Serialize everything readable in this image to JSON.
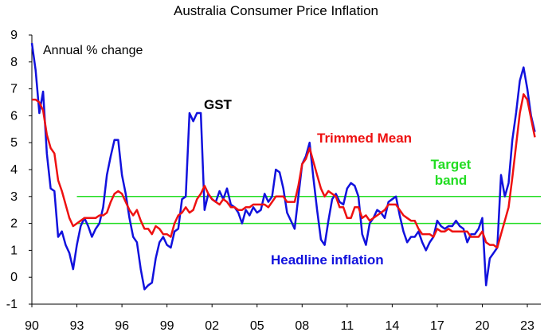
{
  "chart_data": {
    "type": "line",
    "title": "Australia Consumer Price Inflation",
    "ylabel": "Annual % change",
    "xlabel": "",
    "ylim": [
      -1,
      9
    ],
    "xlim": [
      1990,
      2023.9
    ],
    "y_ticks": [
      "-1",
      "0",
      "1",
      "2",
      "3",
      "4",
      "5",
      "6",
      "7",
      "8",
      "9"
    ],
    "x_ticks": [
      {
        "label": "90",
        "x": 1990
      },
      {
        "label": "93",
        "x": 1993
      },
      {
        "label": "96",
        "x": 1996
      },
      {
        "label": "99",
        "x": 1999
      },
      {
        "label": "02",
        "x": 2002
      },
      {
        "label": "05",
        "x": 2005
      },
      {
        "label": "08",
        "x": 2008
      },
      {
        "label": "11",
        "x": 2011
      },
      {
        "label": "14",
        "x": 2014
      },
      {
        "label": "17",
        "x": 2017
      },
      {
        "label": "20",
        "x": 2020
      },
      {
        "label": "23",
        "x": 2023
      }
    ],
    "target_band": {
      "lower": 2,
      "upper": 3,
      "x_start": 1993,
      "label_line1": "Target",
      "label_line2": "band",
      "color": "#22dd22"
    },
    "annotations": [
      {
        "text": "GST",
        "color": "#000000"
      },
      {
        "text": "Trimmed Mean",
        "color": "#ee1111"
      },
      {
        "text": "Headline inflation",
        "color": "#1111dd"
      }
    ],
    "series": [
      {
        "name": "Headline inflation",
        "color": "#1111dd",
        "x": [
          1990.0,
          1990.25,
          1990.5,
          1990.75,
          1991.0,
          1991.25,
          1991.5,
          1991.75,
          1992.0,
          1992.25,
          1992.5,
          1992.75,
          1993.0,
          1993.25,
          1993.5,
          1993.75,
          1994.0,
          1994.25,
          1994.5,
          1994.75,
          1995.0,
          1995.25,
          1995.5,
          1995.75,
          1996.0,
          1996.25,
          1996.5,
          1996.75,
          1997.0,
          1997.25,
          1997.5,
          1997.75,
          1998.0,
          1998.25,
          1998.5,
          1998.75,
          1999.0,
          1999.25,
          1999.5,
          1999.75,
          2000.0,
          2000.25,
          2000.5,
          2000.75,
          2001.0,
          2001.25,
          2001.5,
          2001.75,
          2002.0,
          2002.25,
          2002.5,
          2002.75,
          2003.0,
          2003.25,
          2003.5,
          2003.75,
          2004.0,
          2004.25,
          2004.5,
          2004.75,
          2005.0,
          2005.25,
          2005.5,
          2005.75,
          2006.0,
          2006.25,
          2006.5,
          2006.75,
          2007.0,
          2007.25,
          2007.5,
          2007.75,
          2008.0,
          2008.25,
          2008.5,
          2008.75,
          2009.0,
          2009.25,
          2009.5,
          2009.75,
          2010.0,
          2010.25,
          2010.5,
          2010.75,
          2011.0,
          2011.25,
          2011.5,
          2011.75,
          2012.0,
          2012.25,
          2012.5,
          2012.75,
          2013.0,
          2013.25,
          2013.5,
          2013.75,
          2014.0,
          2014.25,
          2014.5,
          2014.75,
          2015.0,
          2015.25,
          2015.5,
          2015.75,
          2016.0,
          2016.25,
          2016.5,
          2016.75,
          2017.0,
          2017.25,
          2017.5,
          2017.75,
          2018.0,
          2018.25,
          2018.5,
          2018.75,
          2019.0,
          2019.25,
          2019.5,
          2019.75,
          2020.0,
          2020.25,
          2020.5,
          2020.75,
          2021.0,
          2021.25,
          2021.5,
          2021.75,
          2022.0,
          2022.25,
          2022.5,
          2022.75,
          2023.0,
          2023.25,
          2023.5
        ],
        "y": [
          8.7,
          7.7,
          6.1,
          6.9,
          4.6,
          3.3,
          3.2,
          1.5,
          1.7,
          1.2,
          0.9,
          0.3,
          1.2,
          1.9,
          2.2,
          1.9,
          1.5,
          1.8,
          2.0,
          2.6,
          3.8,
          4.5,
          5.1,
          5.1,
          3.8,
          3.1,
          2.2,
          1.5,
          1.3,
          0.3,
          -0.45,
          -0.3,
          -0.2,
          0.7,
          1.3,
          1.5,
          1.2,
          1.1,
          1.7,
          1.8,
          2.9,
          3.0,
          6.1,
          5.8,
          6.1,
          6.1,
          2.5,
          3.1,
          2.9,
          2.8,
          3.2,
          2.9,
          3.3,
          2.7,
          2.6,
          2.4,
          2.0,
          2.5,
          2.3,
          2.6,
          2.4,
          2.5,
          3.1,
          2.8,
          3.0,
          4.0,
          3.9,
          3.3,
          2.4,
          2.1,
          1.8,
          3.0,
          4.2,
          4.5,
          5.0,
          3.7,
          2.5,
          1.4,
          1.2,
          2.1,
          2.9,
          3.1,
          2.8,
          2.7,
          3.3,
          3.5,
          3.4,
          3.0,
          1.6,
          1.2,
          2.0,
          2.2,
          2.5,
          2.4,
          2.2,
          2.8,
          2.9,
          3.0,
          2.3,
          1.7,
          1.3,
          1.5,
          1.5,
          1.7,
          1.3,
          1.0,
          1.3,
          1.5,
          2.1,
          1.9,
          1.8,
          1.9,
          1.9,
          2.1,
          1.9,
          1.8,
          1.3,
          1.6,
          1.6,
          1.8,
          2.2,
          -0.3,
          0.7,
          0.9,
          1.1,
          3.8,
          3.0,
          3.5,
          5.1,
          6.1,
          7.3,
          7.8,
          7.0,
          6.0,
          5.4
        ]
      },
      {
        "name": "Trimmed Mean",
        "color": "#ee1111",
        "x": [
          1990.0,
          1990.25,
          1990.5,
          1990.75,
          1991.0,
          1991.25,
          1991.5,
          1991.75,
          1992.0,
          1992.25,
          1992.5,
          1992.75,
          1993.0,
          1993.25,
          1993.5,
          1993.75,
          1994.0,
          1994.25,
          1994.5,
          1994.75,
          1995.0,
          1995.25,
          1995.5,
          1995.75,
          1996.0,
          1996.25,
          1996.5,
          1996.75,
          1997.0,
          1997.25,
          1997.5,
          1997.75,
          1998.0,
          1998.25,
          1998.5,
          1998.75,
          1999.0,
          1999.25,
          1999.5,
          1999.75,
          2000.0,
          2000.25,
          2000.5,
          2000.75,
          2001.0,
          2001.25,
          2001.5,
          2001.75,
          2002.0,
          2002.25,
          2002.5,
          2002.75,
          2003.0,
          2003.25,
          2003.5,
          2003.75,
          2004.0,
          2004.25,
          2004.5,
          2004.75,
          2005.0,
          2005.25,
          2005.5,
          2005.75,
          2006.0,
          2006.25,
          2006.5,
          2006.75,
          2007.0,
          2007.25,
          2007.5,
          2007.75,
          2008.0,
          2008.25,
          2008.5,
          2008.75,
          2009.0,
          2009.25,
          2009.5,
          2009.75,
          2010.0,
          2010.25,
          2010.5,
          2010.75,
          2011.0,
          2011.25,
          2011.5,
          2011.75,
          2012.0,
          2012.25,
          2012.5,
          2012.75,
          2013.0,
          2013.25,
          2013.5,
          2013.75,
          2014.0,
          2014.25,
          2014.5,
          2014.75,
          2015.0,
          2015.25,
          2015.5,
          2015.75,
          2016.0,
          2016.25,
          2016.5,
          2016.75,
          2017.0,
          2017.25,
          2017.5,
          2017.75,
          2018.0,
          2018.25,
          2018.5,
          2018.75,
          2019.0,
          2019.25,
          2019.5,
          2019.75,
          2020.0,
          2020.25,
          2020.5,
          2020.75,
          2021.0,
          2021.25,
          2021.5,
          2021.75,
          2022.0,
          2022.25,
          2022.5,
          2022.75,
          2023.0,
          2023.25,
          2023.5
        ],
        "y": [
          6.6,
          6.6,
          6.5,
          6.2,
          5.3,
          4.8,
          4.6,
          3.6,
          3.2,
          2.7,
          2.2,
          1.9,
          2.0,
          2.1,
          2.2,
          2.2,
          2.2,
          2.2,
          2.3,
          2.3,
          2.4,
          2.8,
          3.1,
          3.2,
          3.1,
          2.8,
          2.5,
          2.3,
          2.5,
          2.1,
          1.8,
          1.8,
          1.6,
          1.9,
          1.8,
          1.6,
          1.6,
          1.5,
          2.0,
          2.3,
          2.4,
          2.6,
          2.4,
          2.5,
          2.9,
          3.1,
          3.4,
          3.1,
          2.9,
          2.8,
          2.7,
          2.9,
          2.8,
          2.6,
          2.6,
          2.5,
          2.5,
          2.6,
          2.6,
          2.7,
          2.7,
          2.7,
          2.7,
          2.6,
          2.8,
          3.0,
          3.0,
          3.0,
          2.8,
          2.8,
          2.8,
          3.4,
          4.2,
          4.4,
          4.8,
          4.3,
          3.8,
          3.3,
          3.0,
          3.2,
          3.1,
          3.0,
          2.6,
          2.6,
          2.2,
          2.2,
          2.6,
          2.6,
          2.2,
          2.3,
          2.1,
          2.2,
          2.3,
          2.4,
          2.5,
          2.7,
          2.7,
          2.7,
          2.5,
          2.3,
          2.2,
          2.1,
          2.1,
          1.8,
          1.6,
          1.6,
          1.6,
          1.5,
          1.8,
          1.7,
          1.7,
          1.8,
          1.7,
          1.7,
          1.7,
          1.7,
          1.7,
          1.5,
          1.5,
          1.5,
          1.7,
          1.3,
          1.2,
          1.2,
          1.1,
          1.6,
          2.1,
          2.6,
          3.7,
          4.9,
          6.1,
          6.8,
          6.6,
          5.9,
          5.2
        ]
      }
    ]
  }
}
